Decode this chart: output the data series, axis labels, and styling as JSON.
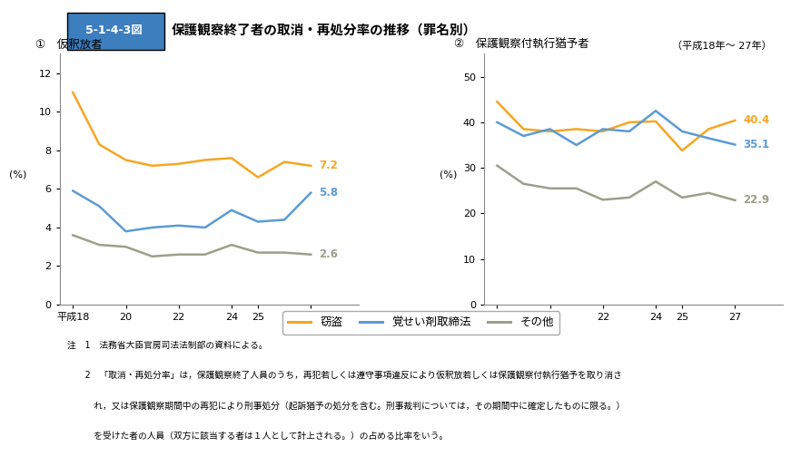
{
  "title": "5-1-4-3図　保護観察終了者の取消・再処分率の推移（罪名別）",
  "subtitle": "（平成18年～ 27年）",
  "chart1_title": "①　仮釈放者",
  "chart2_title": "②　保護観察付執行猶予者",
  "years": [
    18,
    19,
    20,
    21,
    22,
    23,
    24,
    25,
    26,
    27
  ],
  "chart1": {
    "setsuto": [
      11.0,
      8.3,
      7.5,
      7.2,
      7.3,
      7.5,
      7.6,
      6.6,
      7.4,
      7.2
    ],
    "kakuseizai": [
      5.9,
      5.1,
      3.8,
      4.0,
      4.1,
      4.0,
      4.9,
      4.3,
      4.4,
      5.8
    ],
    "sonota": [
      3.6,
      3.1,
      3.0,
      2.5,
      2.6,
      2.6,
      3.1,
      2.7,
      2.7,
      2.6
    ]
  },
  "chart2": {
    "setsuto": [
      44.5,
      38.5,
      38.0,
      38.5,
      38.0,
      40.0,
      40.2,
      33.8,
      38.5,
      40.4
    ],
    "kakuseizai": [
      40.0,
      37.0,
      38.5,
      35.0,
      38.5,
      38.0,
      42.5,
      38.0,
      36.5,
      35.1
    ],
    "sonota": [
      30.5,
      26.5,
      25.5,
      25.5,
      23.0,
      23.5,
      27.0,
      23.5,
      24.5,
      22.9
    ]
  },
  "colors": {
    "setsuto": "#F5A623",
    "kakuseizai": "#5B9BD5",
    "sonota": "#9E9E8A"
  },
  "legend_labels": {
    "setsuto": "窃盗",
    "kakuseizai": "覚せい剤取締法",
    "sonota": "その他"
  },
  "chart1_ylim": [
    0,
    13
  ],
  "chart1_yticks": [
    0,
    2,
    4,
    6,
    8,
    10,
    12
  ],
  "chart2_ylim": [
    0,
    55
  ],
  "chart2_yticks": [
    0,
    10,
    20,
    30,
    40,
    50
  ],
  "note1": "注　1　法務省大臣官房司法法制部の資料による。",
  "note2": "　　2　「取消・再処分率」は，保護観察終了人員のうち，再犯若しくは遵守事項違反により仮釈放若しくは保護観察付執行猶予を取り消さ",
  "note3": "　　　れ，又は保護観察期間中の再犯により刑事処分（起訴猶予の処分を含む。刑事裁判については，その期間中に確定したものに限る。）",
  "note4": "　　　を受けた者の人員（双方に該当する者は１人として計上される。）の占める比率をいう。",
  "bg_color": "#FFFFFF",
  "header_bg": "#3D7EBF",
  "header_text": "#FFFFFF"
}
